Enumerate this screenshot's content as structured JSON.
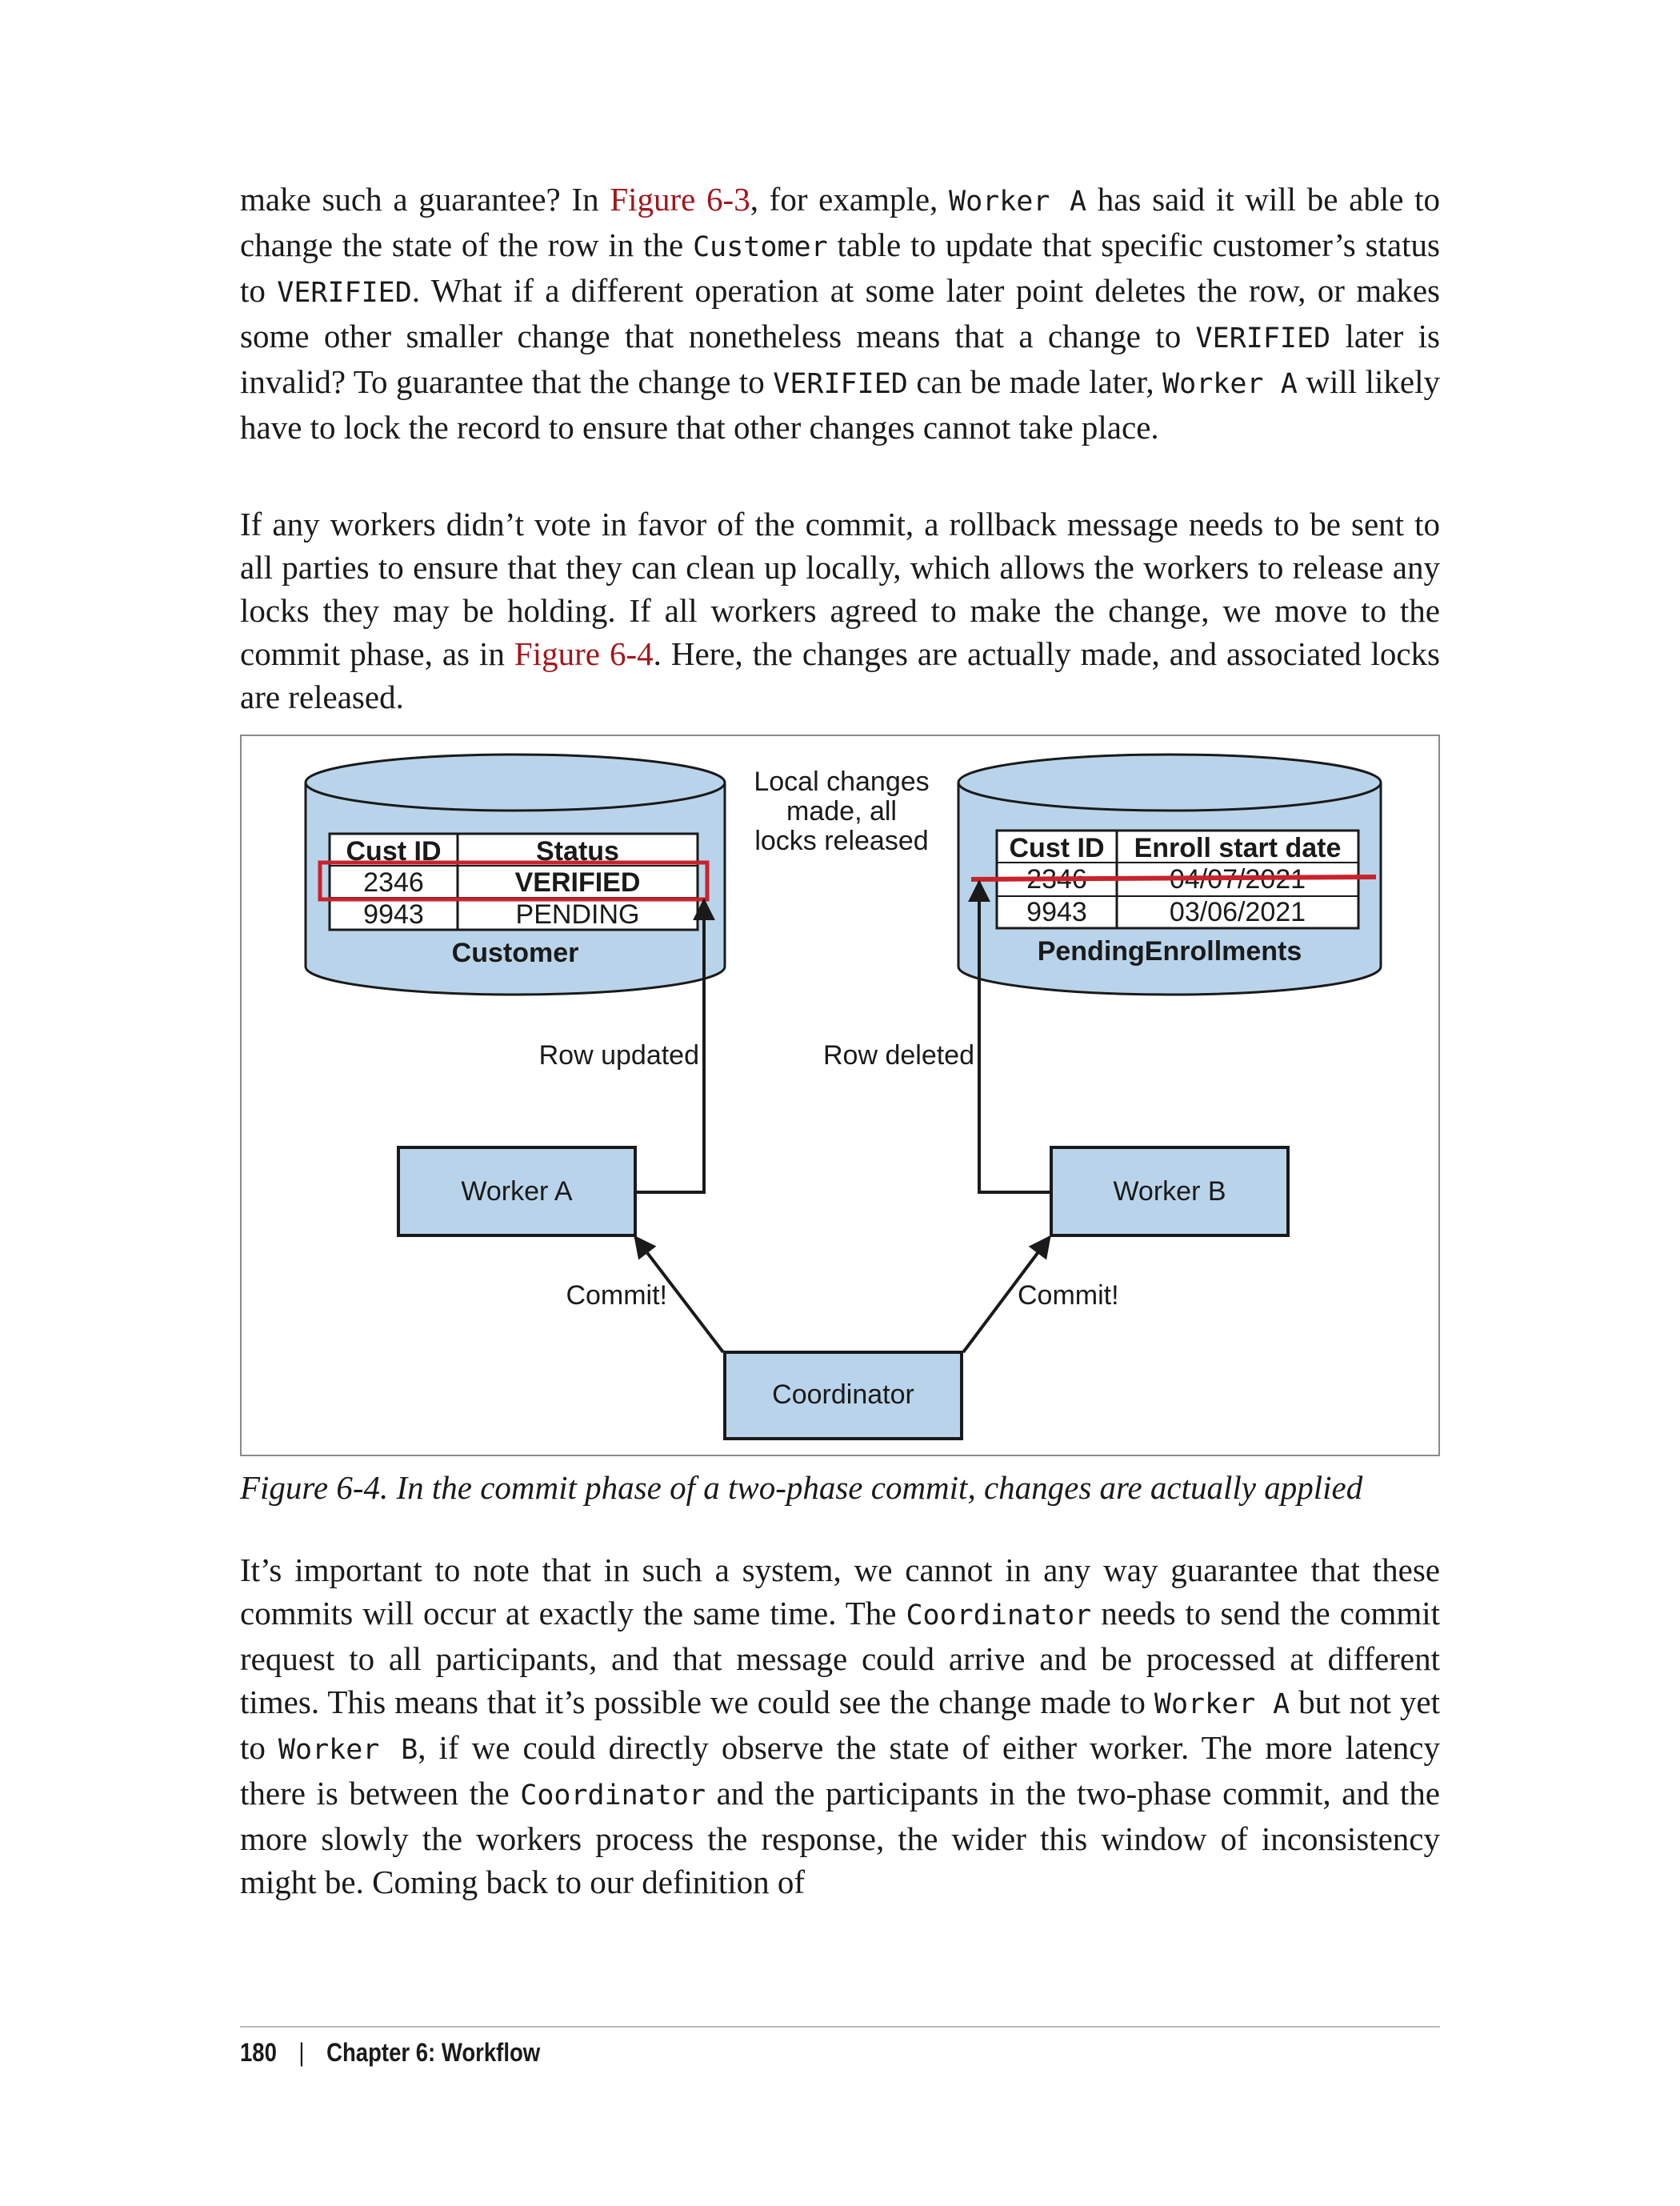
{
  "body": {
    "p1": [
      {
        "t": "make such a guarantee? In "
      },
      {
        "t": "Figure 6-3",
        "link": true
      },
      {
        "t": ", for example, "
      },
      {
        "t": "Worker A",
        "code": true
      },
      {
        "t": " has said it will be able to change the state of the row in the "
      },
      {
        "t": "Customer",
        "code": true
      },
      {
        "t": " table to update that specific customer’s status to "
      },
      {
        "t": "VERIFIED",
        "code": true
      },
      {
        "t": ". What if a different operation at some later point deletes the row, or makes some other smaller change that nonetheless means that a change to "
      },
      {
        "t": "VERIFIED",
        "code": true
      },
      {
        "t": " later is invalid? To guarantee that the change to "
      },
      {
        "t": "VERIFIED",
        "code": true
      },
      {
        "t": " can be made later, "
      },
      {
        "t": "Worker A",
        "code": true
      },
      {
        "t": " will likely have to lock the record to ensure that other changes cannot take place."
      }
    ],
    "p2": [
      {
        "t": "If any workers didn’t vote in favor of the commit, a rollback message needs to be sent to all parties to ensure that they can clean up locally, which allows the workers to release any locks they may be holding. If all workers agreed to make the change, we move to the commit phase, as in "
      },
      {
        "t": "Figure 6-4",
        "link": true
      },
      {
        "t": ". Here, the changes are actually made, and associated locks are released."
      }
    ],
    "p3": [
      {
        "t": "It’s important to note that in such a system, we cannot in any way guarantee that these commits will occur at exactly the same time. The "
      },
      {
        "t": "Coordinator",
        "code": true
      },
      {
        "t": " needs to send the commit request to all participants, and that message could arrive and be processed at different times. This means that it’s possible we could see the change made to "
      },
      {
        "t": "Worker A",
        "code": true
      },
      {
        "t": " but not yet to "
      },
      {
        "t": "Worker B",
        "code": true
      },
      {
        "t": ", if we could directly observe the state of either worker. The more latency there is between the "
      },
      {
        "t": "Coordinator",
        "code": true
      },
      {
        "t": " and the participants in the two-phase commit, and the more slowly the workers process the response, the wider this window of inconsistency might be. Coming back to our definition of"
      }
    ]
  },
  "figure": {
    "customer_db": {
      "name": "Customer",
      "headers": [
        "Cust ID",
        "Status"
      ],
      "rows": [
        [
          "2346",
          "VERIFIED"
        ],
        [
          "9943",
          "PENDING"
        ]
      ]
    },
    "enroll_db": {
      "name": "PendingEnrollments",
      "headers": [
        "Cust ID",
        "Enroll start date"
      ],
      "rows": [
        [
          "2346",
          "04/07/2021"
        ],
        [
          "9943",
          "03/06/2021"
        ]
      ]
    },
    "note_lines": [
      "Local changes",
      "made, all",
      "locks released"
    ],
    "row_updated": "Row updated",
    "row_deleted": "Row deleted",
    "worker_a": "Worker A",
    "worker_b": "Worker B",
    "commit_left": "Commit!",
    "commit_right": "Commit!",
    "coordinator": "Coordinator",
    "colors": {
      "fill": "#b9d4ea",
      "highlight": "#c8232c",
      "line": "#1a1a1a"
    }
  },
  "caption": "Figure 6-4. In the commit phase of a two-phase commit, changes are actually applied",
  "footer": {
    "page_number": "180",
    "separator": "|",
    "chapter": "Chapter 6: Workflow"
  }
}
